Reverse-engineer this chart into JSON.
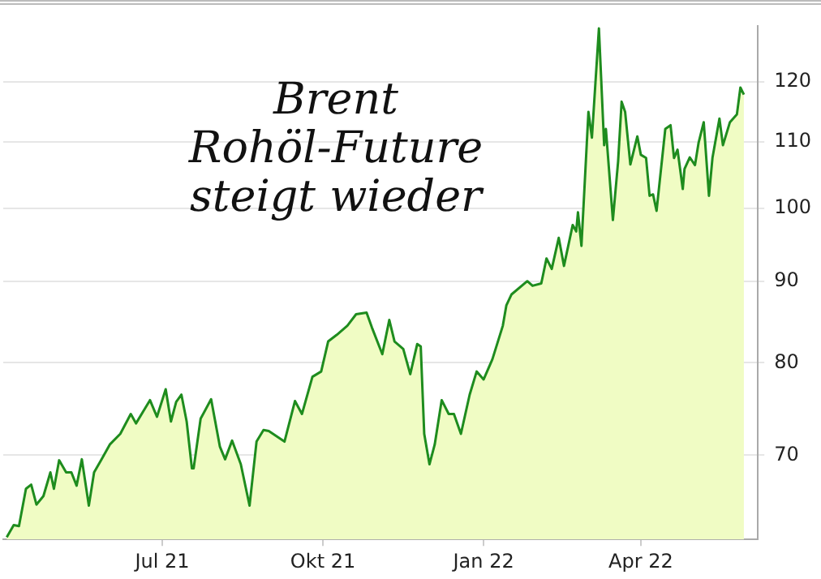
{
  "chart_data": {
    "type": "area",
    "title": "Brent\nRohöl-Future\nsteigt wieder",
    "x": [
      "2021-04-03",
      "2021-04-07",
      "2021-04-10",
      "2021-04-14",
      "2021-04-17",
      "2021-04-20",
      "2021-04-24",
      "2021-04-28",
      "2021-04-30",
      "2021-05-03",
      "2021-05-07",
      "2021-05-10",
      "2021-05-13",
      "2021-05-16",
      "2021-05-20",
      "2021-05-23",
      "2021-05-27",
      "2021-06-01",
      "2021-06-07",
      "2021-06-13",
      "2021-06-16",
      "2021-06-24",
      "2021-06-28",
      "2021-07-03",
      "2021-07-06",
      "2021-07-09",
      "2021-07-12",
      "2021-07-15",
      "2021-07-18",
      "2021-07-19",
      "2021-07-23",
      "2021-07-29",
      "2021-08-03",
      "2021-08-06",
      "2021-08-10",
      "2021-08-15",
      "2021-08-20",
      "2021-08-24",
      "2021-08-28",
      "2021-08-31",
      "2021-09-09",
      "2021-09-15",
      "2021-09-19",
      "2021-09-25",
      "2021-09-30",
      "2021-10-04",
      "2021-10-09",
      "2021-10-15",
      "2021-10-20",
      "2021-10-26",
      "2021-10-29",
      "2021-11-04",
      "2021-11-08",
      "2021-11-11",
      "2021-11-16",
      "2021-11-20",
      "2021-11-24",
      "2021-11-26",
      "2021-11-28",
      "2021-12-01",
      "2021-12-04",
      "2021-12-08",
      "2021-12-12",
      "2021-12-15",
      "2021-12-19",
      "2021-12-24",
      "2021-12-28",
      "2022-01-01",
      "2022-01-06",
      "2022-01-12",
      "2022-01-14",
      "2022-01-17",
      "2022-01-26",
      "2022-01-29",
      "2022-02-03",
      "2022-02-06",
      "2022-02-09",
      "2022-02-13",
      "2022-02-16",
      "2022-02-21",
      "2022-02-23",
      "2022-02-24",
      "2022-02-26",
      "2022-03-02",
      "2022-03-04",
      "2022-03-08",
      "2022-03-11",
      "2022-03-12",
      "2022-03-16",
      "2022-03-19",
      "2022-03-21",
      "2022-03-23",
      "2022-03-26",
      "2022-03-30",
      "2022-04-01",
      "2022-04-04",
      "2022-04-06",
      "2022-04-08",
      "2022-04-10",
      "2022-04-15",
      "2022-04-18",
      "2022-04-20",
      "2022-04-22",
      "2022-04-25",
      "2022-04-26",
      "2022-04-29",
      "2022-05-02",
      "2022-05-04",
      "2022-05-07",
      "2022-05-10",
      "2022-05-12",
      "2022-05-16",
      "2022-05-18",
      "2022-05-22",
      "2022-05-26",
      "2022-05-28",
      "2022-05-30"
    ],
    "series": [
      {
        "color": "#1e8c1e",
        "values": [
          62.2,
          63.3,
          63.2,
          66.7,
          67.1,
          65.2,
          66.0,
          68.3,
          66.7,
          69.5,
          68.3,
          68.3,
          67.0,
          69.6,
          65.1,
          68.3,
          69.5,
          71.1,
          72.2,
          74.3,
          73.3,
          75.8,
          74.0,
          77.0,
          73.5,
          75.6,
          76.4,
          73.5,
          68.7,
          68.7,
          73.8,
          75.9,
          70.9,
          69.6,
          71.5,
          69.1,
          65.1,
          71.4,
          72.6,
          72.5,
          71.4,
          75.7,
          74.3,
          78.4,
          79.0,
          82.5,
          83.3,
          84.4,
          85.8,
          86.0,
          84.2,
          81.0,
          85.1,
          82.5,
          81.6,
          78.7,
          82.2,
          81.9,
          72.2,
          69.1,
          71.1,
          75.8,
          74.3,
          74.3,
          72.2,
          76.4,
          79.0,
          78.1,
          80.4,
          84.4,
          86.9,
          88.3,
          90.0,
          89.4,
          89.7,
          93.0,
          91.6,
          95.8,
          92.0,
          97.6,
          96.7,
          99.4,
          94.7,
          114.9,
          110.7,
          129.6,
          109.5,
          112.1,
          98.3,
          107.0,
          116.6,
          114.9,
          106.5,
          110.9,
          108.0,
          107.5,
          101.8,
          102.0,
          99.6,
          112.1,
          112.7,
          107.5,
          108.8,
          102.8,
          105.8,
          107.6,
          106.4,
          109.8,
          113.2,
          101.8,
          107.5,
          113.8,
          109.5,
          113.2,
          114.5,
          119.0,
          117.8
        ]
      }
    ],
    "xlim": [
      "2021-04-01",
      "2022-06-07"
    ],
    "xticks": [
      {
        "value": "2021-07-01",
        "label": "Jul 21"
      },
      {
        "value": "2021-10-01",
        "label": "Okt 21"
      },
      {
        "value": "2022-01-01",
        "label": "Jan 22"
      },
      {
        "value": "2022-04-01",
        "label": "Apr 22"
      }
    ],
    "ylim": [
      62,
      130
    ],
    "yticks": [
      70,
      80,
      90,
      100,
      110,
      120
    ],
    "log": "y",
    "grid": "y",
    "legend": false
  }
}
